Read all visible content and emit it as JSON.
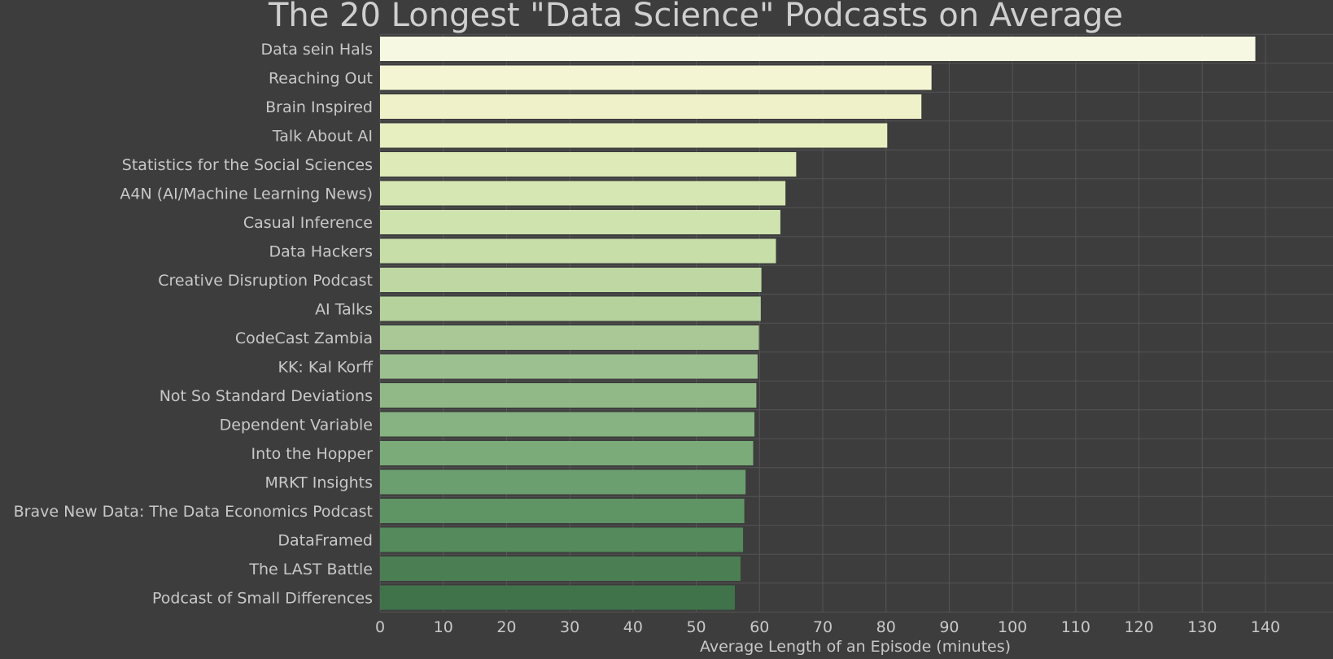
{
  "chart_data": {
    "type": "bar",
    "orientation": "horizontal",
    "title": "The 20 Longest \"Data Science\" Podcasts on Average",
    "xlabel": "Average Length of an Episode (minutes)",
    "ylabel": "",
    "xlim": [
      0,
      145
    ],
    "xticks": [
      0,
      10,
      20,
      30,
      40,
      50,
      60,
      70,
      80,
      90,
      100,
      110,
      120,
      130,
      140
    ],
    "grid": true,
    "categories": [
      "Data sein Hals",
      "Reaching Out",
      "Brain Inspired",
      "Talk About AI",
      "Statistics for the Social Sciences",
      "A4N (AI/Machine Learning News)",
      "Casual Inference",
      "Data Hackers",
      "Creative Disruption Podcast",
      "AI Talks",
      "CodeCast Zambia",
      "KK: Kal Korff",
      "Not So Standard Deviations",
      "Dependent Variable",
      "Into the Hopper",
      "MRKT Insights",
      "Brave New Data: The Data Economics Podcast",
      "DataFramed",
      "The LAST Battle",
      "Podcast of Small Differences"
    ],
    "values": [
      138.4,
      87.2,
      85.6,
      80.2,
      65.8,
      64.1,
      63.3,
      62.6,
      60.3,
      60.2,
      59.9,
      59.7,
      59.5,
      59.2,
      59.0,
      57.8,
      57.6,
      57.4,
      57.0,
      56.1
    ],
    "colors": [
      "#f7f8e2",
      "#f4f5d3",
      "#eff2c9",
      "#e7efc1",
      "#deebb9",
      "#d6e7b4",
      "#cfe3af",
      "#c8dea8",
      "#bfd8a3",
      "#b5d29c",
      "#a9c896",
      "#9dc090",
      "#91b988",
      "#86b381",
      "#7aab79",
      "#6c9f6f",
      "#5f9464",
      "#548a5c",
      "#4b7f53",
      "#41734b"
    ]
  }
}
